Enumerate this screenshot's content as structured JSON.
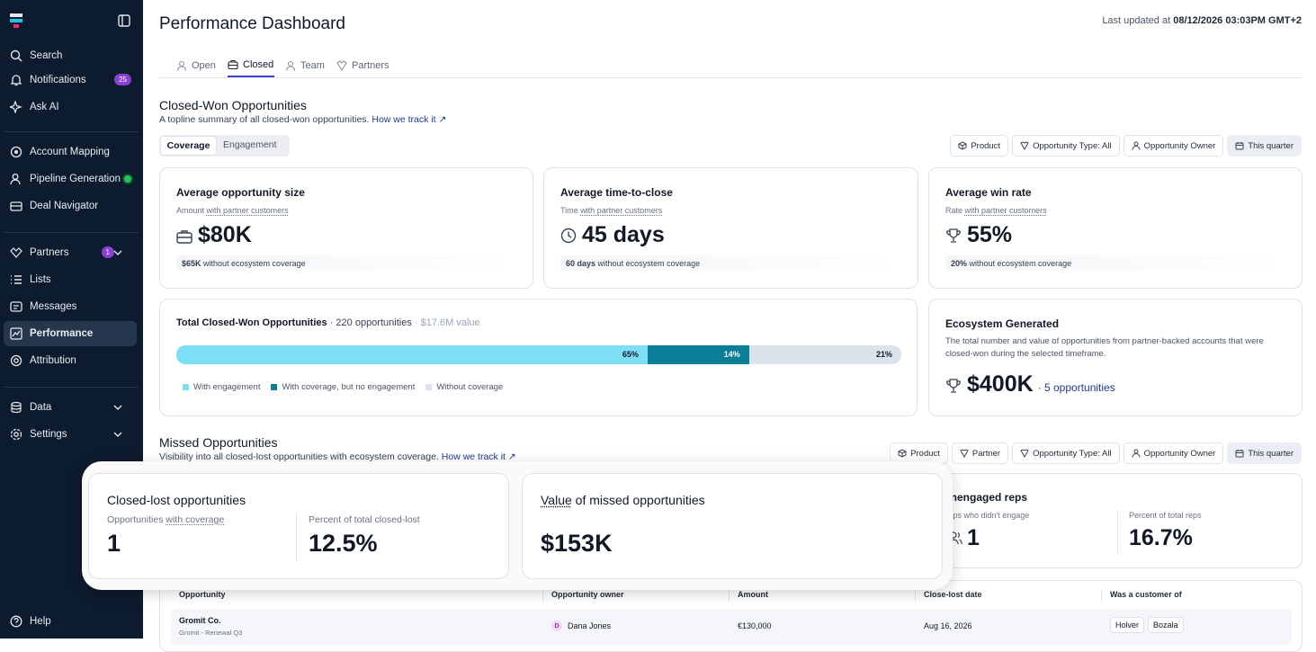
{
  "sidebar": {
    "nav": [
      {
        "label": "Search"
      },
      {
        "label": "Notifications",
        "badge": 25
      },
      {
        "label": "Ask AI"
      },
      {
        "label": "Account Mapping"
      },
      {
        "label": "Pipeline Generation"
      },
      {
        "label": "Deal Navigator"
      },
      {
        "label": "Partners",
        "badge": 1
      },
      {
        "label": "Lists"
      },
      {
        "label": "Messages"
      },
      {
        "label": "Performance"
      },
      {
        "label": "Attribution"
      },
      {
        "label": "Data"
      },
      {
        "label": "Settings"
      }
    ],
    "help": "Help"
  },
  "header": {
    "title": "Performance Dashboard",
    "updated_prefix": "Last updated at",
    "updated_value": "08/12/2026 03:03PM GMT+2"
  },
  "tabs": [
    "Open",
    "Closed",
    "Team",
    "Partners"
  ],
  "closed_won": {
    "title": "Closed-Won Opportunities",
    "subtitle": "A topline summary of all closed-won opportunities.",
    "link": "How we track it ↗",
    "toggle": [
      "Coverage",
      "Engagement"
    ],
    "filters": [
      "Product",
      "Opportunity Type: All",
      "Opportunity Owner",
      "This quarter"
    ],
    "cards": [
      {
        "title": "Average opportunity size",
        "sub": "Amount",
        "sub_link": "with partner customers",
        "value": "$80K",
        "note_value": "$65K",
        "note": "without ecosystem coverage"
      },
      {
        "title": "Average time-to-close",
        "sub": "Time",
        "sub_link": "with partner customers",
        "value": "45 days",
        "note_value": "60 days",
        "note": "without ecosystem coverage"
      },
      {
        "title": "Average win rate",
        "sub": "Rate",
        "sub_link": "with partner customers",
        "value": "55%",
        "note_value": "20%",
        "note": "without ecosystem coverage"
      }
    ],
    "total": {
      "title": "Total Closed-Won Opportunities",
      "count": "· 220 opportunities",
      "amount": "· $17.6M value",
      "segments": [
        {
          "name": "With engagement",
          "value": 65,
          "label": "65%",
          "color": "#7ddff5"
        },
        {
          "name": "With coverage, but no engagement",
          "value": 14,
          "label": "14%",
          "color": "#0b7f98"
        },
        {
          "name": "Without coverage",
          "value": 21,
          "label": "21%",
          "color": "#dde3ec"
        }
      ]
    },
    "ecosystem": {
      "title": "Ecosystem Generated",
      "description": "The total number and value of opportunities from partner-backed accounts that were closed-won during the selected timeframe.",
      "value": "$400K",
      "count": "· 5 opportunities"
    }
  },
  "missed": {
    "title": "Missed Opportunities",
    "subtitle": "Visibility into all closed-lost opportunities with ecosystem coverage.",
    "link": "How we track it ↗",
    "filters": [
      "Product",
      "Partner",
      "Opportunity Type: All",
      "Opportunity Owner",
      "This quarter"
    ],
    "unengaged": {
      "title": "Unengaged reps",
      "sub": "Reps who didn't engage",
      "value": "1",
      "pct_label": "Percent of total reps",
      "pct": "16.7%"
    },
    "popup": [
      {
        "title": "Closed-lost opportunities",
        "left_label": "Opportunities",
        "left_link": "with coverage",
        "left_value": "1",
        "right_label": "Percent of total closed-lost",
        "right_value": "12.5%"
      },
      {
        "title_link": "Value",
        "title": "of missed opportunities",
        "value": "$153K"
      }
    ],
    "table": {
      "columns": [
        "Opportunity",
        "Opportunity owner",
        "Amount",
        "Close-lost date",
        "Was a customer of"
      ],
      "rows": [
        {
          "name": "Gromit Co.",
          "detail": "Gromit - Renewal Q3",
          "owner_initial": "D",
          "owner": "Dana Jones",
          "amount": "€130,000",
          "date": "Aug 16, 2026",
          "customers": [
            "Holver",
            "Bozala"
          ]
        }
      ]
    }
  }
}
